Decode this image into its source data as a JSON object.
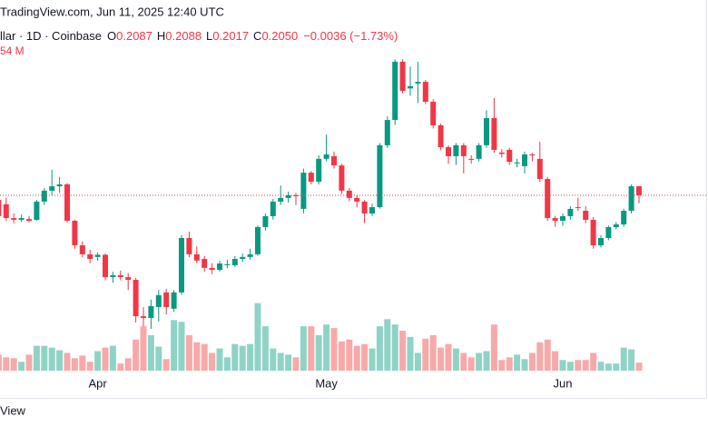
{
  "chart_data": {
    "type": "candlestick",
    "watermark": "TradingView.com, Jun 11, 2025 12:40 UTC",
    "symbol": "llar · 1D · Coinbase",
    "ohlc_legend": [
      {
        "label": "O",
        "value": "0.2087"
      },
      {
        "label": "H",
        "value": "0.2088"
      },
      {
        "label": "L",
        "value": "0.2017"
      },
      {
        "label": "C",
        "value": "0.2050"
      }
    ],
    "change": "−0.0036 (−1.73%)",
    "volume_label": "54 M",
    "footer": "View",
    "up_color": "#089981",
    "down_color": "#f23645",
    "volume_up_color": "#8fd3c6",
    "volume_down_color": "#f7a9a9",
    "ylim": [
      0.1283,
      0.2854
    ],
    "volume_ylim": [
      0,
      1600
    ],
    "categories": [
      null,
      null,
      null,
      null,
      null,
      null,
      null,
      null,
      null,
      null,
      null,
      null,
      null,
      "Apr",
      null,
      null,
      null,
      null,
      null,
      null,
      null,
      null,
      null,
      null,
      null,
      null,
      null,
      null,
      null,
      null,
      null,
      null,
      null,
      null,
      null,
      null,
      null,
      null,
      null,
      null,
      null,
      null,
      null,
      "May",
      null,
      null,
      null,
      null,
      null,
      null,
      null,
      null,
      null,
      null,
      null,
      null,
      null,
      null,
      null,
      null,
      null,
      null,
      null,
      null,
      null,
      null,
      null,
      null,
      null,
      null,
      null,
      null,
      null,
      null,
      "Jun",
      null,
      null,
      null,
      null,
      null,
      null,
      null,
      null,
      null,
      null
    ],
    "open": [
      0.2031,
      0.2013,
      0.1956,
      0.1949,
      0.1952,
      0.1949,
      0.2024,
      0.2069,
      0.2087,
      0.2095,
      0.1945,
      0.1844,
      0.1807,
      0.1796,
      0.1805,
      0.1713,
      0.1721,
      0.1713,
      0.1702,
      0.1552,
      0.1545,
      0.159,
      0.165,
      0.1583,
      0.165,
      0.1874,
      0.1807,
      0.1788,
      0.1751,
      0.1743,
      0.1762,
      0.1762,
      0.1788,
      0.1796,
      0.1807,
      0.1919,
      0.1964,
      0.2024,
      0.2039,
      0.205,
      0.1994,
      0.2143,
      0.2106,
      0.22,
      0.2211,
      0.2173,
      0.2069,
      0.2039,
      0.2024,
      0.1975,
      0.2001,
      0.2256,
      0.236,
      0.26,
      0.249,
      0.251,
      0.2517,
      0.2435,
      0.2338,
      0.2248,
      0.2211,
      0.2256,
      0.22,
      0.22,
      0.2256,
      0.2368,
      0.2226,
      0.2237,
      0.2181,
      0.217,
      0.2218,
      0.22,
      0.2117,
      0.1956,
      0.1945,
      0.1964,
      0.2001,
      0.1986,
      0.1949,
      0.1844,
      0.1874,
      0.1919,
      0.193,
      0.1986,
      0.2087
    ],
    "high": [
      0.2045,
      0.204,
      0.1975,
      0.197,
      0.1965,
      0.2031,
      0.208,
      0.2155,
      0.2125,
      0.21,
      0.195,
      0.186,
      0.1825,
      0.1815,
      0.181,
      0.1735,
      0.174,
      0.173,
      0.171,
      0.159,
      0.162,
      0.166,
      0.1665,
      0.166,
      0.1885,
      0.19,
      0.184,
      0.18,
      0.177,
      0.178,
      0.1785,
      0.18,
      0.181,
      0.183,
      0.1925,
      0.1975,
      0.2035,
      0.209,
      0.2065,
      0.206,
      0.216,
      0.215,
      0.2215,
      0.23,
      0.223,
      0.218,
      0.208,
      0.205,
      0.203,
      0.2015,
      0.2265,
      0.2375,
      0.261,
      0.261,
      0.258,
      0.26,
      0.2525,
      0.2445,
      0.2345,
      0.2255,
      0.2265,
      0.2265,
      0.2215,
      0.2265,
      0.24,
      0.245,
      0.224,
      0.2245,
      0.22,
      0.223,
      0.2225,
      0.227,
      0.2125,
      0.1965,
      0.1975,
      0.2005,
      0.204,
      0.2005,
      0.196,
      0.1885,
      0.1925,
      0.194,
      0.1995,
      0.2095,
      0.2088
    ],
    "low": [
      0.195,
      0.1945,
      0.1935,
      0.194,
      0.1938,
      0.1945,
      0.201,
      0.205,
      0.206,
      0.1938,
      0.183,
      0.1795,
      0.177,
      0.178,
      0.17,
      0.169,
      0.17,
      0.166,
      0.1526,
      0.151,
      0.15,
      0.153,
      0.156,
      0.157,
      0.164,
      0.1795,
      0.177,
      0.1735,
      0.1725,
      0.1735,
      0.175,
      0.1755,
      0.1775,
      0.1785,
      0.18,
      0.1905,
      0.195,
      0.201,
      0.202,
      0.201,
      0.1975,
      0.2095,
      0.2095,
      0.219,
      0.216,
      0.2055,
      0.2025,
      0.2,
      0.1935,
      0.1965,
      0.1995,
      0.2245,
      0.234,
      0.247,
      0.246,
      0.243,
      0.2425,
      0.2325,
      0.2235,
      0.218,
      0.2175,
      0.214,
      0.218,
      0.219,
      0.2245,
      0.2225,
      0.2205,
      0.2175,
      0.2165,
      0.214,
      0.219,
      0.2105,
      0.1945,
      0.192,
      0.1925,
      0.195,
      0.1985,
      0.1935,
      0.183,
      0.1835,
      0.1865,
      0.191,
      0.192,
      0.1975,
      0.2017
    ],
    "close": [
      0.1964,
      0.1956,
      0.1949,
      0.1956,
      0.1945,
      0.2024,
      0.2069,
      0.2087,
      0.2095,
      0.1945,
      0.1844,
      0.1807,
      0.1788,
      0.1805,
      0.1713,
      0.1721,
      0.1713,
      0.1702,
      0.1552,
      0.1545,
      0.1594,
      0.1639,
      0.159,
      0.165,
      0.1874,
      0.1807,
      0.1781,
      0.1751,
      0.1743,
      0.1769,
      0.1766,
      0.1788,
      0.1796,
      0.1807,
      0.1919,
      0.1964,
      0.2024,
      0.2039,
      0.205,
      0.2046,
      0.2143,
      0.2106,
      0.22,
      0.2218,
      0.2173,
      0.2069,
      0.2039,
      0.2024,
      0.1975,
      0.2001,
      0.2256,
      0.236,
      0.26,
      0.248,
      0.2499,
      0.2517,
      0.2435,
      0.2338,
      0.2248,
      0.2211,
      0.2256,
      0.2211,
      0.2196,
      0.2256,
      0.2368,
      0.2237,
      0.222,
      0.2188,
      0.2185,
      0.2218,
      0.2214,
      0.2117,
      0.1956,
      0.1945,
      0.1964,
      0.1994,
      0.1998,
      0.1949,
      0.1844,
      0.1874,
      0.1919,
      0.193,
      0.1986,
      0.2087,
      0.205
    ],
    "volume": [
      306,
      255,
      238,
      170,
      306,
      476,
      476,
      442,
      391,
      340,
      238,
      289,
      170,
      374,
      442,
      476,
      136,
      238,
      595,
      850,
      680,
      459,
      221,
      969,
      935,
      680,
      544,
      510,
      340,
      425,
      255,
      510,
      476,
      510,
      1292,
      850,
      425,
      340,
      306,
      255,
      850,
      850,
      680,
      884,
      816,
      561,
      595,
      476,
      510,
      425,
      850,
      986,
      884,
      765,
      646,
      340,
      612,
      680,
      442,
      510,
      425,
      340,
      255,
      340,
      374,
      884,
      204,
      255,
      306,
      221,
      340,
      544,
      595,
      374,
      204,
      170,
      204,
      204,
      340,
      170,
      136,
      136,
      442,
      408,
      154
    ]
  }
}
